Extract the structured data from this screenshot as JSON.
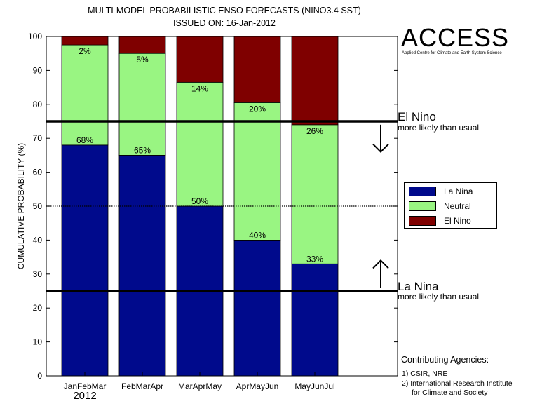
{
  "header": {
    "title": "MULTI-MODEL PROBABILISTIC ENSO FORECASTS (NINO3.4 SST)",
    "subtitle": "ISSUED ON: 16-Jan-2012"
  },
  "brand": {
    "name": "ACCESS",
    "tagline": "Applied Centre for Climate and Earth System Science"
  },
  "annotations": {
    "el_nino_title": "El Nino",
    "el_nino_sub": "more likely than usual",
    "la_nina_title": "La Nina",
    "la_nina_sub": "more likely than usual"
  },
  "contributors": {
    "title": "Contributing Agencies:",
    "items": [
      "1) CSIR, NRE",
      "2) International Research Institute",
      "for Climate and Society"
    ]
  },
  "chart_data": {
    "type": "bar",
    "stacked": true,
    "ylabel": "CUMULATIVE PROBABILITY (%)",
    "xlabel": "",
    "ylim": [
      0,
      100
    ],
    "yticks": [
      0,
      10,
      20,
      30,
      40,
      50,
      60,
      70,
      80,
      90,
      100
    ],
    "categories": [
      "JanFebMar",
      "FebMarApr",
      "MarAprMay",
      "AprMayJun",
      "MayJunJul"
    ],
    "year_label": "2012",
    "series": [
      {
        "name": "La Nina",
        "values": [
          68,
          65,
          50,
          40,
          33
        ],
        "color": "#000a8c"
      },
      {
        "name": "Neutral",
        "values": [
          29.5,
          30,
          36.5,
          40.5,
          41
        ],
        "color": "#99f582"
      },
      {
        "name": "El Nino",
        "values": [
          2.5,
          5,
          13.5,
          19.5,
          26
        ],
        "color": "#7f0000"
      }
    ],
    "data_labels": {
      "la_nina": [
        "68%",
        "65%",
        "50%",
        "40%",
        "33%"
      ],
      "el_nino": [
        "2%",
        "5%",
        "14%",
        "20%",
        "26%"
      ]
    },
    "reference_lines": [
      {
        "y": 75,
        "style": "solid"
      },
      {
        "y": 50,
        "style": "dotted"
      },
      {
        "y": 25,
        "style": "solid"
      }
    ],
    "legend": {
      "position": "right",
      "entries": [
        "La Nina",
        "Neutral",
        "El Nino"
      ]
    },
    "grid": false
  }
}
